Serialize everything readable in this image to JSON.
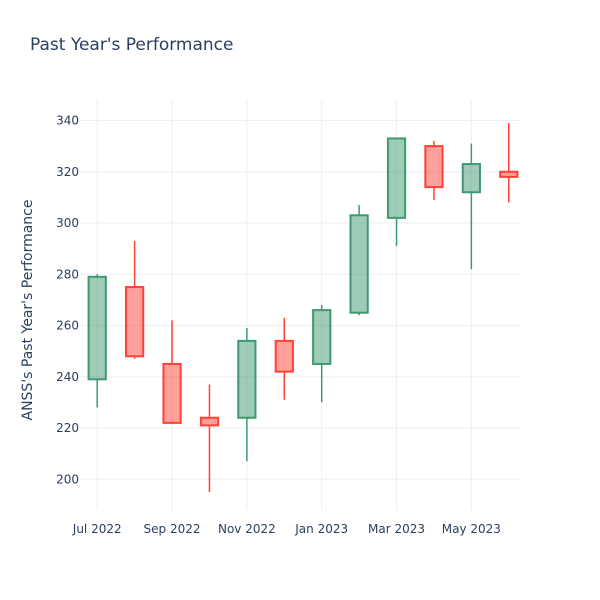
{
  "chart_data": {
    "type": "candlestick",
    "title": "Past Year's Performance",
    "ylabel": "ANSS's Past Year's Performance",
    "xlabel": "",
    "ylim": [
      188,
      348
    ],
    "yticks": [
      200,
      220,
      240,
      260,
      280,
      300,
      320,
      340
    ],
    "xticks": [
      {
        "label": "Jul 2022",
        "pos": 0
      },
      {
        "label": "Sep 2022",
        "pos": 2
      },
      {
        "label": "Nov 2022",
        "pos": 4
      },
      {
        "label": "Jan 2023",
        "pos": 6
      },
      {
        "label": "Mar 2023",
        "pos": 8
      },
      {
        "label": "May 2023",
        "pos": 10
      }
    ],
    "grid": true,
    "increasing_color": "#3d9970",
    "decreasing_color": "#ff4136",
    "candles": [
      {
        "month": "2022-07",
        "open": 239,
        "high": 280,
        "low": 228,
        "close": 279
      },
      {
        "month": "2022-08",
        "open": 275,
        "high": 293,
        "low": 247,
        "close": 248
      },
      {
        "month": "2022-09",
        "open": 245,
        "high": 262,
        "low": 222,
        "close": 222
      },
      {
        "month": "2022-10",
        "open": 224,
        "high": 237,
        "low": 195,
        "close": 221
      },
      {
        "month": "2022-11",
        "open": 224,
        "high": 259,
        "low": 207,
        "close": 254
      },
      {
        "month": "2022-12",
        "open": 254,
        "high": 263,
        "low": 231,
        "close": 242
      },
      {
        "month": "2023-01",
        "open": 245,
        "high": 268,
        "low": 230,
        "close": 266
      },
      {
        "month": "2023-02",
        "open": 265,
        "high": 307,
        "low": 264,
        "close": 303
      },
      {
        "month": "2023-03",
        "open": 302,
        "high": 333,
        "low": 291,
        "close": 333
      },
      {
        "month": "2023-04",
        "open": 330,
        "high": 332,
        "low": 309,
        "close": 314
      },
      {
        "month": "2023-05",
        "open": 312,
        "high": 331,
        "low": 282,
        "close": 323
      },
      {
        "month": "2023-06",
        "open": 320,
        "high": 339,
        "low": 308,
        "close": 318
      }
    ]
  }
}
